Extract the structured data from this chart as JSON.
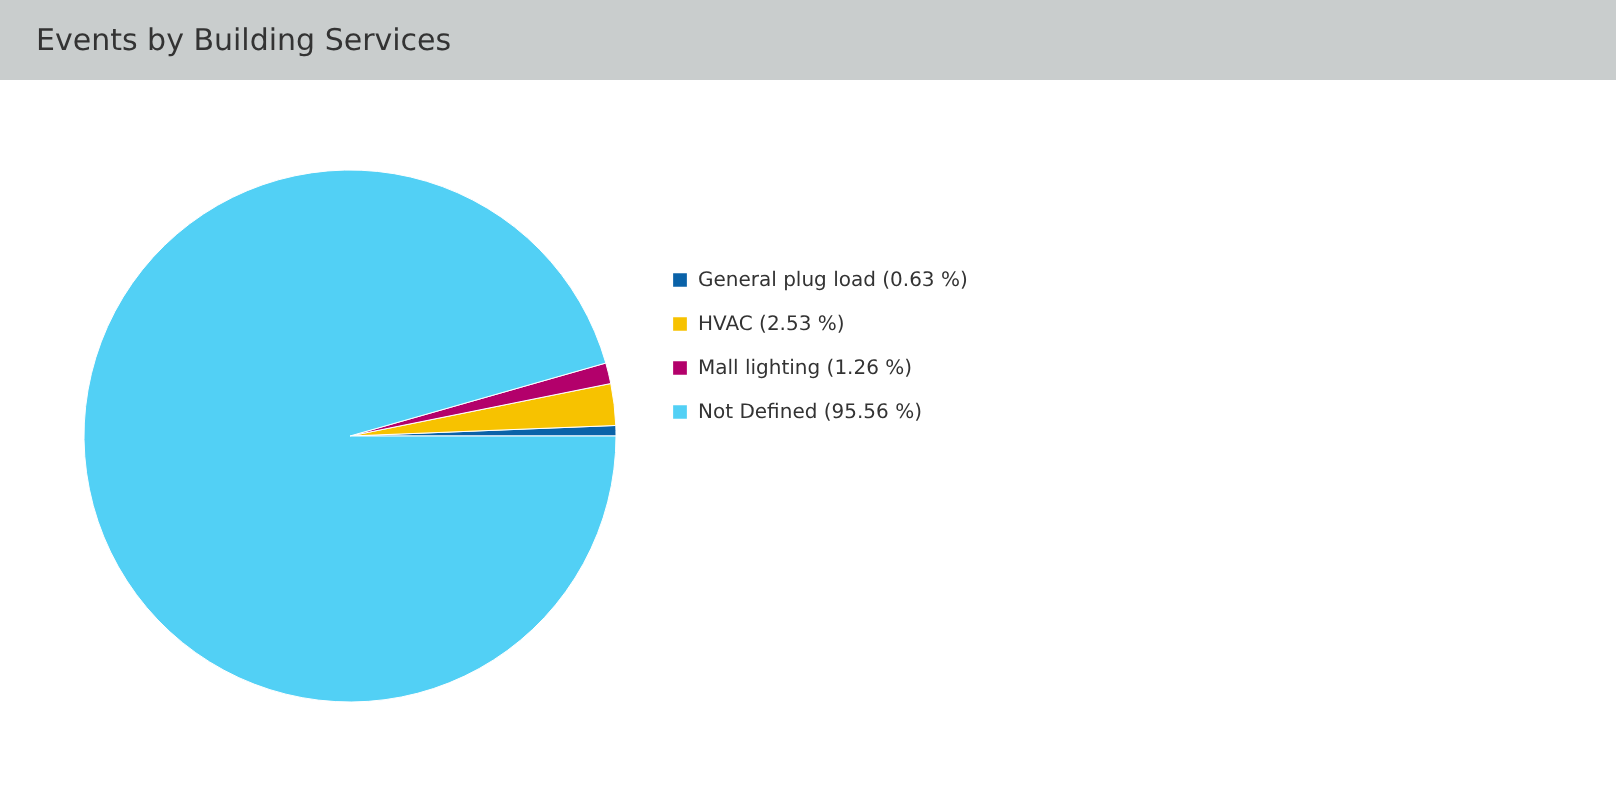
{
  "chart_data": {
    "type": "pie",
    "title": "Events by Building Services",
    "categories": [
      "General plug load",
      "HVAC",
      "Mall lighting",
      "Not Defined"
    ],
    "values": [
      0.63,
      2.53,
      1.26,
      95.56
    ],
    "value_labels": [
      "(0.63 %)",
      "(2.53 %)",
      "(1.26 %)",
      "(95.56 %)"
    ],
    "colors": [
      "#0a62a8",
      "#f7c200",
      "#b3006b",
      "#52d0f5"
    ],
    "legend": "right"
  }
}
